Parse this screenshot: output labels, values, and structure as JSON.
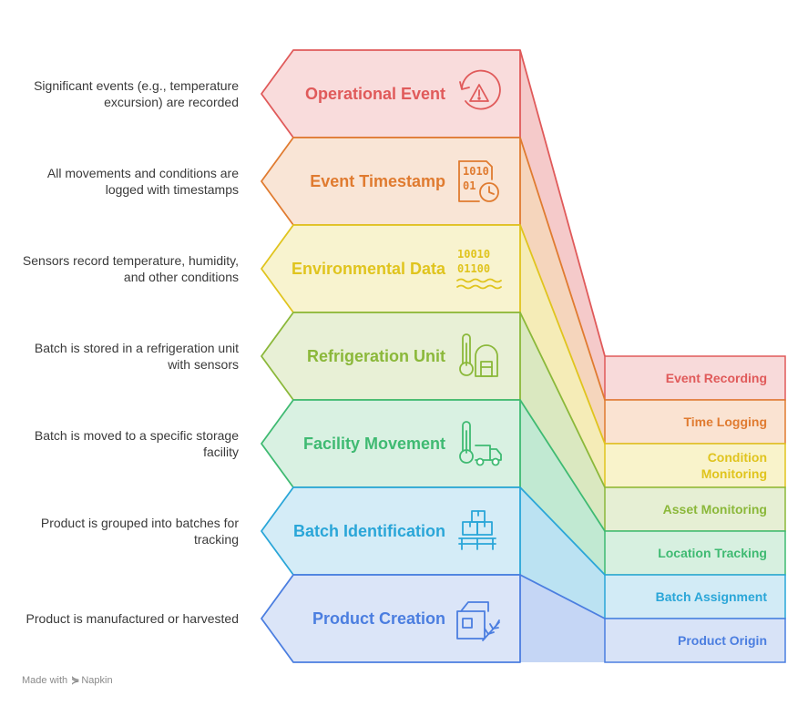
{
  "layers": [
    {
      "title": "Operational Event",
      "description": "Significant events (e.g., temperature excursion) are recorded",
      "side_label": "Event Recording",
      "icon": "alert-cycle-icon",
      "color": "#e05a5a",
      "fill": "#f9dcdc",
      "side_fill": "#f8dada"
    },
    {
      "title": "Event Timestamp",
      "description": "All movements and conditions are logged with timestamps",
      "side_label": "Time Logging",
      "icon": "binary-clock-icon",
      "color": "#e07b30",
      "fill": "#f9e5d6",
      "side_fill": "#fae3d2"
    },
    {
      "title": "Environmental Data",
      "description": "Sensors record temperature, humidity, and other conditions",
      "side_label": "Condition Monitoring",
      "icon": "binary-data-icon",
      "color": "#e0c41e",
      "fill": "#f8f3cf",
      "side_fill": "#f9f3cb"
    },
    {
      "title": "Refrigeration Unit",
      "description": "Batch is stored in a refrigeration unit with sensors",
      "side_label": "Asset Monitoring",
      "icon": "thermometer-storage-icon",
      "color": "#8bb83a",
      "fill": "#e8f0d6",
      "side_fill": "#e6efd4"
    },
    {
      "title": "Facility Movement",
      "description": "Batch is moved to a specific storage facility",
      "side_label": "Location Tracking",
      "icon": "thermometer-truck-icon",
      "color": "#3fba72",
      "fill": "#d9f1e2",
      "side_fill": "#d7f0e0"
    },
    {
      "title": "Batch Identification",
      "description": "Product is grouped into batches for tracking",
      "side_label": "Batch Assignment",
      "icon": "boxes-pallet-icon",
      "color": "#2aa6d8",
      "fill": "#d4ecf7",
      "side_fill": "#d2ebf6"
    },
    {
      "title": "Product Creation",
      "description": "Product is manufactured or harvested",
      "side_label": "Product Origin",
      "icon": "package-leaf-icon",
      "color": "#4b7ee0",
      "fill": "#dbe5f8",
      "side_fill": "#d8e3f7"
    }
  ],
  "footer": {
    "prefix": "Made with",
    "brand": "Napkin"
  }
}
